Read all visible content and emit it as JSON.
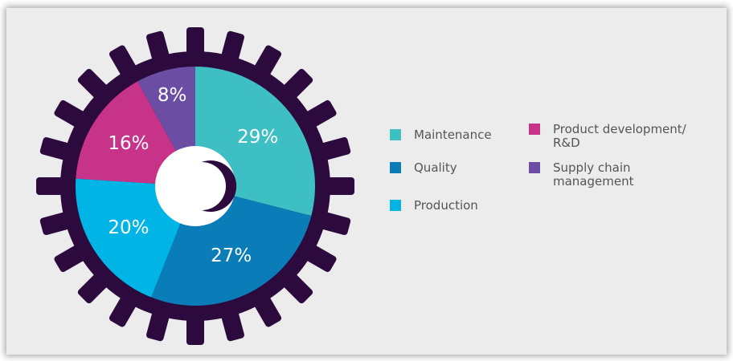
{
  "chart_data": {
    "type": "pie",
    "categories": [
      "Maintenance",
      "Quality",
      "Production",
      "Product development/ R&D",
      "Supply chain management"
    ],
    "values": [
      29,
      27,
      20,
      16,
      8
    ],
    "value_labels": [
      "29%",
      "27%",
      "20%",
      "16%",
      "8%"
    ],
    "colors": [
      "#3dbfc3",
      "#0a7cb8",
      "#00b4e6",
      "#c8338a",
      "#6b4ea3"
    ]
  }
}
